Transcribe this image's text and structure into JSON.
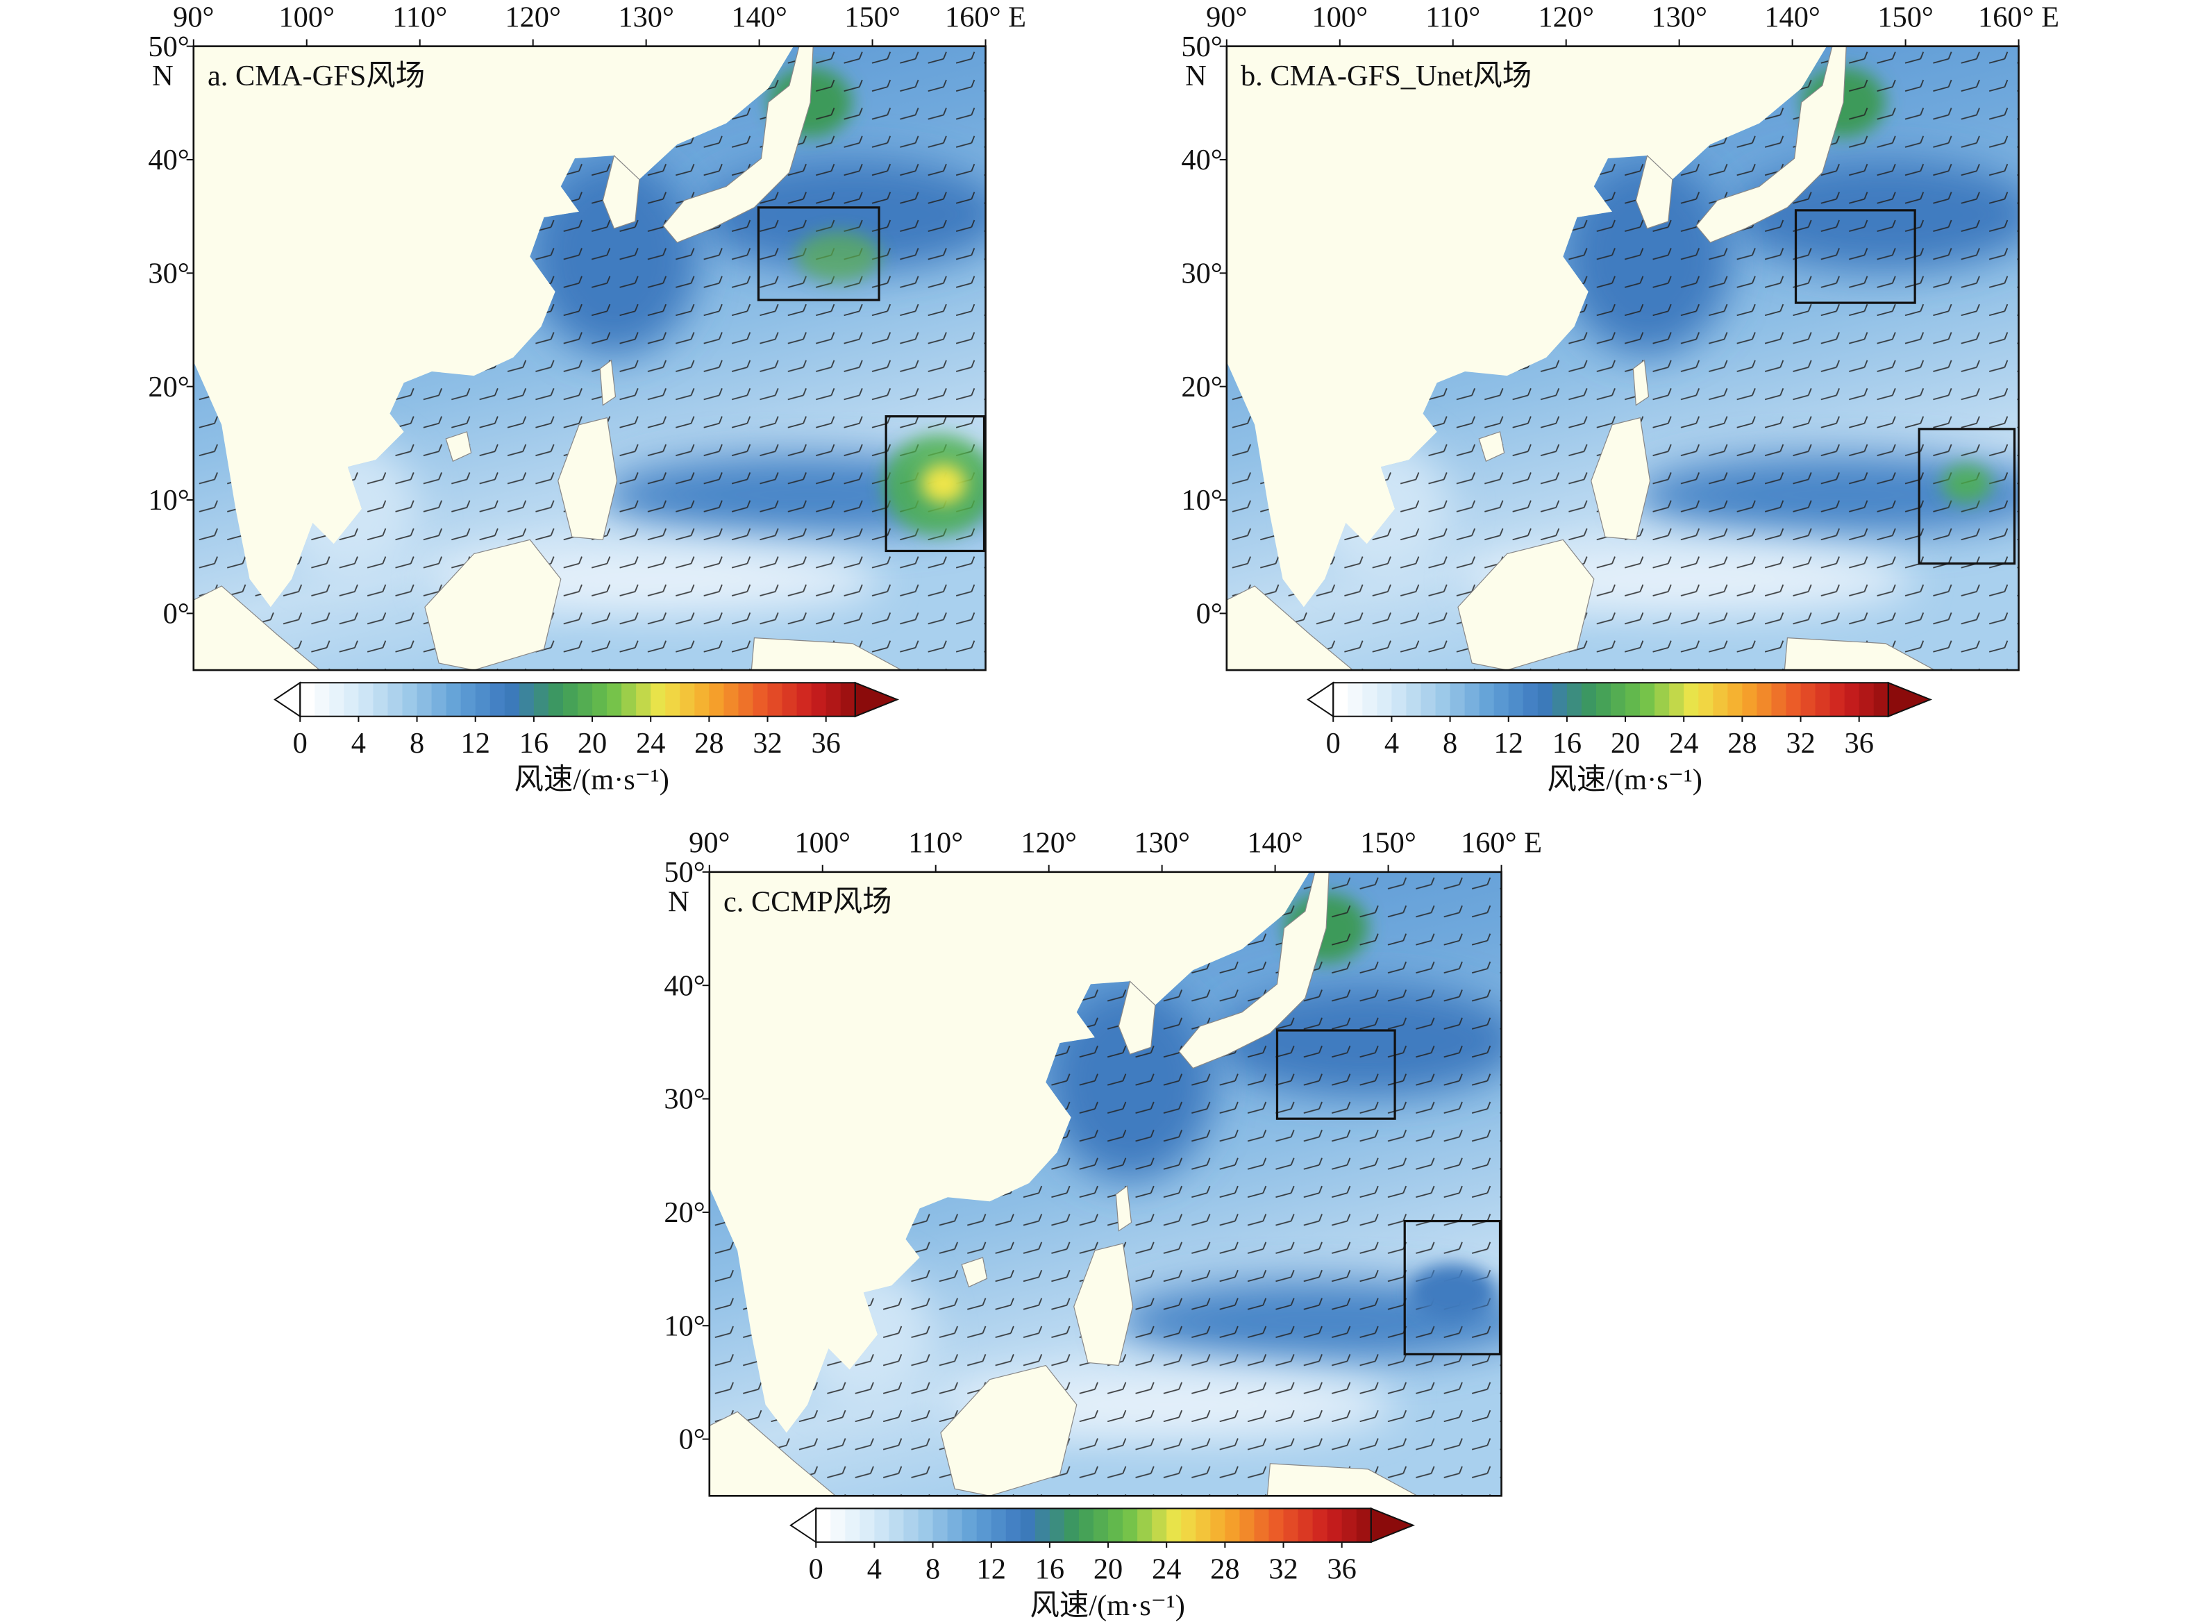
{
  "lon_range": [
    90,
    160
  ],
  "lat_range": [
    -5,
    50
  ],
  "lon_ticks": [
    {
      "value": 90,
      "label": "90°"
    },
    {
      "value": 100,
      "label": "100°"
    },
    {
      "value": 110,
      "label": "110°"
    },
    {
      "value": 120,
      "label": "120°"
    },
    {
      "value": 130,
      "label": "130°"
    },
    {
      "value": 140,
      "label": "140°"
    },
    {
      "value": 150,
      "label": "150°"
    },
    {
      "value": 160,
      "label": "160° E"
    }
  ],
  "lat_ticks": [
    {
      "value": 50,
      "label": "50°"
    },
    {
      "value": 40,
      "label": "40°"
    },
    {
      "value": 30,
      "label": "30°"
    },
    {
      "value": 20,
      "label": "20°"
    },
    {
      "value": 10,
      "label": "10°"
    },
    {
      "value": 0,
      "label": "0°"
    }
  ],
  "lat_unit": "N",
  "panels": [
    {
      "title": "a. CMA-GFS风场"
    },
    {
      "title": "b. CMA-GFS_Unet风场"
    },
    {
      "title": "c. CCMP风场"
    }
  ],
  "colorbar": {
    "range": [
      0,
      38
    ],
    "ticks": [
      0,
      4,
      8,
      12,
      16,
      20,
      24,
      28,
      32,
      36
    ],
    "colors": [
      "#ffffff",
      "#d6eaf8",
      "#9ecae9",
      "#5f9fd6",
      "#3c78bf",
      "#3c9a5a",
      "#6cc04a",
      "#efe54a",
      "#f6a72b",
      "#eb5a28",
      "#cc1f1f",
      "#8b0b0b"
    ],
    "label": "风速/(m·s⁻¹)"
  }
}
